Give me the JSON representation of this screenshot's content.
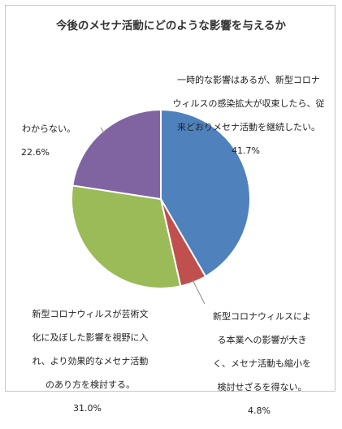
{
  "chart_data": {
    "type": "pie",
    "title": "今後のメセナ活動にどのような影響を与えるか",
    "start_angle_deg": 0,
    "direction": "clockwise",
    "slices": [
      {
        "label": "一時的な影響はあるが、新型コロナウィルスの感染拡大が収束したら、従来どおりメセナ活動を継続したい。",
        "value": 41.7,
        "display": "41.7%",
        "color": "#4f81bd"
      },
      {
        "label": "新型コロナウィルスによる本業への影響が大きく、メセナ活動も縮小を検討せざるを得ない。",
        "value": 4.8,
        "display": "4.8%",
        "color": "#c0504d"
      },
      {
        "label": "新型コロナウィルスが芸術文化に及ぼした影響を視野に入れ、より効果的なメセナ活動のあり方を検討する。",
        "value": 31.0,
        "display": "31.0%",
        "color": "#9bbb59"
      },
      {
        "label": "わからない。",
        "value": 22.6,
        "display": "22.6%",
        "color": "#8064a2"
      }
    ],
    "label_lines": [
      [
        "一時的な影響はあるが、新型コロナ",
        "ウィルスの感染拡大が収束したら、従",
        "来どおりメセナ活動を継続したい。"
      ],
      [
        "新型コロナウィルスによ",
        "る本業への影響が大き",
        "く、メセナ活動も縮小を",
        "検討せざるを得ない。"
      ],
      [
        "新型コロナウィルスが芸術文",
        "化に及ぼした影響を視野に入",
        "れ、より効果的なメセナ活動",
        "のあり方を検討する。"
      ],
      [
        "わからない。"
      ]
    ]
  }
}
